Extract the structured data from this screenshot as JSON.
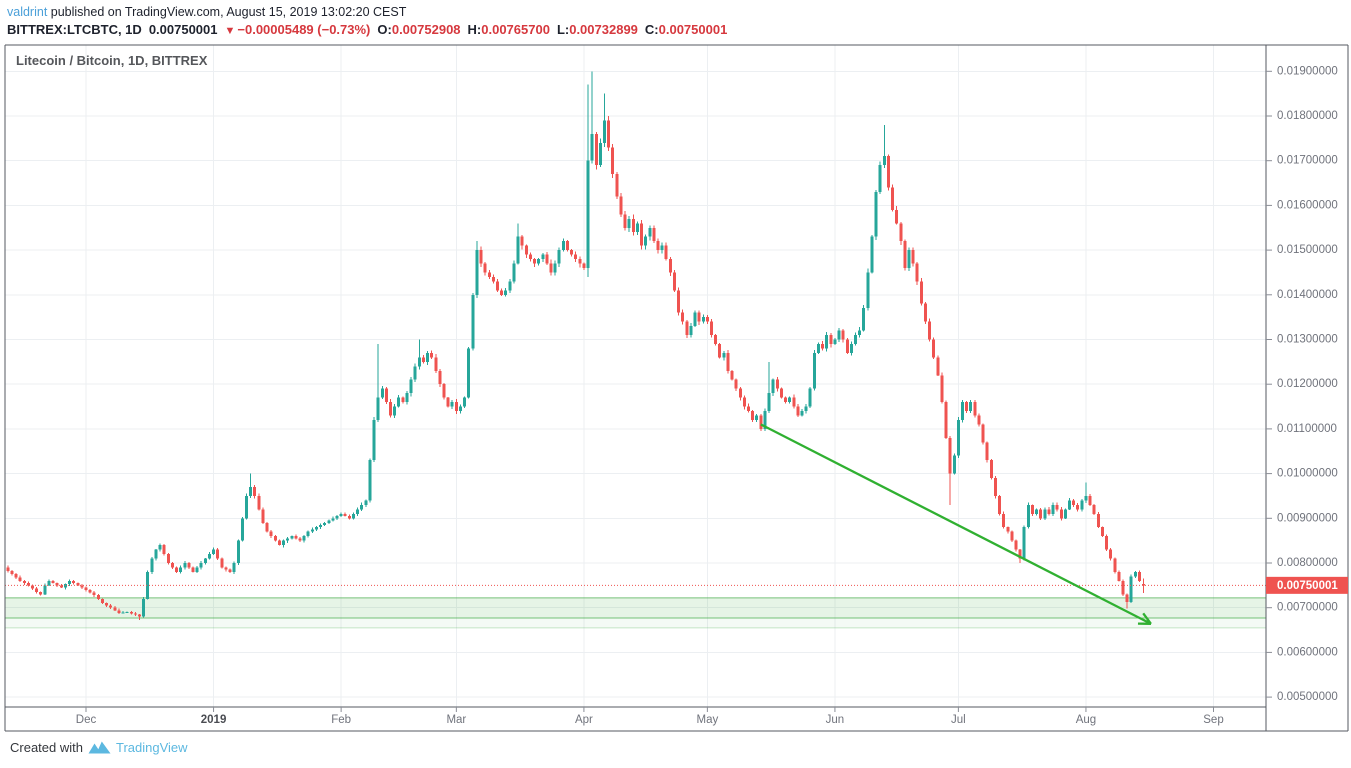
{
  "header": {
    "author": "valdrint",
    "published_text": " published on TradingView.com, August 15, 2019 13:02:20 CEST",
    "ohlc": {
      "symbol_interval": "BITTREX:LTCBTC, 1D",
      "last_price": "0.00750001",
      "direction_icon": "▼",
      "change": "−0.00005489 (−0.73%)",
      "o_label": "O:",
      "o": "0.00752908",
      "h_label": "H:",
      "h": "0.00765700",
      "l_label": "L:",
      "l": "0.00732899",
      "c_label": "C:",
      "c": "0.00750001"
    }
  },
  "footer": {
    "created_with": "Created with",
    "brand": "TradingView"
  },
  "colors": {
    "up": "#26a69a",
    "down": "#ef5350",
    "header_red": "#d6383e",
    "accent_blue": "#4ba0d9",
    "brand_blue": "#5cb8e0",
    "price_line": "#ef5350",
    "badge_bg": "#ef5350",
    "badge_text": "#ffffff",
    "zone_green": "#4caf50",
    "arrow_green": "#30b031",
    "grid": "#eceff2",
    "frame": "#555a62",
    "axis_text": "#70737c"
  },
  "chart_data": {
    "type": "candlestick",
    "title": "Litecoin / Bitcoin, 1D, BITTREX",
    "symbol": "BITTREX:LTCBTC",
    "exchange": "BITTREX",
    "pair": "Litecoin / Bitcoin",
    "interval": "1D",
    "start_date": "2018-11-11",
    "num_days": 278,
    "x_axis": {
      "labels": [
        {
          "text": "Dec",
          "day": 20,
          "year": false
        },
        {
          "text": "2019",
          "day": 51,
          "year": true
        },
        {
          "text": "Feb",
          "day": 82,
          "year": false
        },
        {
          "text": "Mar",
          "day": 110,
          "year": false
        },
        {
          "text": "Apr",
          "day": 141,
          "year": false
        },
        {
          "text": "May",
          "day": 171,
          "year": false
        },
        {
          "text": "Jun",
          "day": 202,
          "year": false
        },
        {
          "text": "Jul",
          "day": 232,
          "year": false
        },
        {
          "text": "Aug",
          "day": 263,
          "year": false
        },
        {
          "text": "Sep",
          "day": 294,
          "year": false
        }
      ]
    },
    "y_axis": {
      "ticks": [
        0.019,
        0.018,
        0.017,
        0.016,
        0.015,
        0.014,
        0.013,
        0.012,
        0.011,
        0.01,
        0.009,
        0.008,
        0.007,
        0.006,
        0.005
      ],
      "decimals": 8
    },
    "last_price_label": "0.00750001",
    "price_line_value": 0.00750001,
    "support_zone": {
      "top": 0.00722,
      "bottom": 0.00677,
      "outer_bottom": 0.00655
    },
    "trend_arrow": {
      "from_day": 184,
      "from_price": 0.0111,
      "to_day": 278.8,
      "to_price": 0.00664
    },
    "daily_closes": [
      [
        0,
        0.0079
      ],
      [
        2,
        0.00775
      ],
      [
        4,
        0.0076
      ],
      [
        6,
        0.0075
      ],
      [
        8,
        0.00735
      ],
      [
        9,
        0.0073
      ],
      [
        10,
        0.0075
      ],
      [
        11,
        0.0076
      ],
      [
        12,
        0.00755
      ],
      [
        13,
        0.0075
      ],
      [
        14,
        0.00745
      ],
      [
        16,
        0.0076
      ],
      [
        18,
        0.0075
      ],
      [
        19,
        0.00745
      ],
      [
        20,
        0.0074
      ],
      [
        22,
        0.00728
      ],
      [
        24,
        0.0071
      ],
      [
        26,
        0.007
      ],
      [
        28,
        0.00688
      ],
      [
        30,
        0.0069
      ],
      [
        32,
        0.00685
      ],
      [
        33,
        0.0068
      ],
      [
        34,
        0.0072
      ],
      [
        35,
        0.0078
      ],
      [
        36,
        0.0081
      ],
      [
        37,
        0.0083
      ],
      [
        38,
        0.0084
      ],
      [
        39,
        0.0082
      ],
      [
        40,
        0.008
      ],
      [
        41,
        0.0079
      ],
      [
        42,
        0.0078
      ],
      [
        43,
        0.0079
      ],
      [
        44,
        0.008
      ],
      [
        45,
        0.0079
      ],
      [
        46,
        0.0078
      ],
      [
        47,
        0.0079
      ],
      [
        48,
        0.008
      ],
      [
        49,
        0.0081
      ],
      [
        50,
        0.0082
      ],
      [
        51,
        0.0083
      ],
      [
        52,
        0.0081
      ],
      [
        53,
        0.0079
      ],
      [
        55,
        0.0078
      ],
      [
        56,
        0.008
      ],
      [
        57,
        0.0085
      ],
      [
        58,
        0.009
      ],
      [
        59,
        0.0095
      ],
      [
        60,
        0.0097
      ],
      [
        61,
        0.0095
      ],
      [
        62,
        0.0092
      ],
      [
        63,
        0.0089
      ],
      [
        64,
        0.0087
      ],
      [
        65,
        0.0086
      ],
      [
        66,
        0.0085
      ],
      [
        67,
        0.0084
      ],
      [
        68,
        0.0085
      ],
      [
        70,
        0.0086
      ],
      [
        72,
        0.0085
      ],
      [
        74,
        0.0087
      ],
      [
        76,
        0.0088
      ],
      [
        78,
        0.0089
      ],
      [
        80,
        0.009
      ],
      [
        82,
        0.0091
      ],
      [
        84,
        0.009
      ],
      [
        86,
        0.0092
      ],
      [
        88,
        0.0094
      ],
      [
        89,
        0.0103
      ],
      [
        90,
        0.0112
      ],
      [
        91,
        0.0117
      ],
      [
        92,
        0.0119
      ],
      [
        93,
        0.0116
      ],
      [
        94,
        0.0113
      ],
      [
        95,
        0.0115
      ],
      [
        96,
        0.0117
      ],
      [
        97,
        0.0116
      ],
      [
        98,
        0.0118
      ],
      [
        99,
        0.0121
      ],
      [
        100,
        0.0124
      ],
      [
        101,
        0.0126
      ],
      [
        102,
        0.0125
      ],
      [
        103,
        0.0127
      ],
      [
        104,
        0.0126
      ],
      [
        105,
        0.0123
      ],
      [
        106,
        0.012
      ],
      [
        107,
        0.0117
      ],
      [
        108,
        0.0115
      ],
      [
        109,
        0.0116
      ],
      [
        110,
        0.0114
      ],
      [
        111,
        0.0115
      ],
      [
        112,
        0.0117
      ],
      [
        113,
        0.0128
      ],
      [
        114,
        0.014
      ],
      [
        115,
        0.015
      ],
      [
        116,
        0.0147
      ],
      [
        117,
        0.0145
      ],
      [
        118,
        0.0144
      ],
      [
        119,
        0.0143
      ],
      [
        120,
        0.0141
      ],
      [
        121,
        0.014
      ],
      [
        122,
        0.0141
      ],
      [
        123,
        0.0143
      ],
      [
        124,
        0.0147
      ],
      [
        125,
        0.0153
      ],
      [
        126,
        0.0151
      ],
      [
        127,
        0.0149
      ],
      [
        128,
        0.0148
      ],
      [
        129,
        0.0147
      ],
      [
        130,
        0.0148
      ],
      [
        131,
        0.0149
      ],
      [
        132,
        0.0147
      ],
      [
        133,
        0.0145
      ],
      [
        134,
        0.0147
      ],
      [
        135,
        0.015
      ],
      [
        136,
        0.0152
      ],
      [
        137,
        0.015
      ],
      [
        138,
        0.0149
      ],
      [
        139,
        0.0148
      ],
      [
        140,
        0.0147
      ],
      [
        141,
        0.0146
      ],
      [
        142,
        0.017
      ],
      [
        143,
        0.0176
      ],
      [
        144,
        0.0169
      ],
      [
        145,
        0.0174
      ],
      [
        146,
        0.0179
      ],
      [
        147,
        0.0173
      ],
      [
        148,
        0.0167
      ],
      [
        149,
        0.0162
      ],
      [
        150,
        0.0158
      ],
      [
        151,
        0.0155
      ],
      [
        152,
        0.0157
      ],
      [
        153,
        0.0154
      ],
      [
        154,
        0.0156
      ],
      [
        155,
        0.0151
      ],
      [
        156,
        0.0153
      ],
      [
        157,
        0.0155
      ],
      [
        158,
        0.0152
      ],
      [
        159,
        0.015
      ],
      [
        160,
        0.0151
      ],
      [
        161,
        0.0148
      ],
      [
        162,
        0.0145
      ],
      [
        163,
        0.0141
      ],
      [
        164,
        0.0136
      ],
      [
        165,
        0.0134
      ],
      [
        166,
        0.0131
      ],
      [
        167,
        0.0133
      ],
      [
        168,
        0.0136
      ],
      [
        169,
        0.0134
      ],
      [
        170,
        0.0135
      ],
      [
        171,
        0.0134
      ],
      [
        172,
        0.0131
      ],
      [
        173,
        0.0129
      ],
      [
        174,
        0.0126
      ],
      [
        175,
        0.0127
      ],
      [
        176,
        0.0123
      ],
      [
        177,
        0.0121
      ],
      [
        178,
        0.0119
      ],
      [
        179,
        0.0117
      ],
      [
        180,
        0.0115
      ],
      [
        181,
        0.0114
      ],
      [
        182,
        0.0112
      ],
      [
        183,
        0.0113
      ],
      [
        184,
        0.011
      ],
      [
        185,
        0.0114
      ],
      [
        186,
        0.0118
      ],
      [
        187,
        0.0121
      ],
      [
        188,
        0.0119
      ],
      [
        189,
        0.0117
      ],
      [
        190,
        0.0116
      ],
      [
        191,
        0.0117
      ],
      [
        192,
        0.0115
      ],
      [
        193,
        0.0113
      ],
      [
        194,
        0.0114
      ],
      [
        195,
        0.0115
      ],
      [
        196,
        0.0119
      ],
      [
        197,
        0.0127
      ],
      [
        198,
        0.0129
      ],
      [
        199,
        0.0128
      ],
      [
        200,
        0.0131
      ],
      [
        201,
        0.0129
      ],
      [
        202,
        0.013
      ],
      [
        203,
        0.0132
      ],
      [
        204,
        0.013
      ],
      [
        205,
        0.0127
      ],
      [
        206,
        0.0129
      ],
      [
        207,
        0.0131
      ],
      [
        208,
        0.0132
      ],
      [
        209,
        0.0137
      ],
      [
        210,
        0.0145
      ],
      [
        211,
        0.0153
      ],
      [
        212,
        0.0163
      ],
      [
        213,
        0.0169
      ],
      [
        214,
        0.0171
      ],
      [
        215,
        0.0164
      ],
      [
        216,
        0.0159
      ],
      [
        217,
        0.0156
      ],
      [
        218,
        0.0152
      ],
      [
        219,
        0.0146
      ],
      [
        220,
        0.015
      ],
      [
        221,
        0.0147
      ],
      [
        222,
        0.0143
      ],
      [
        223,
        0.0138
      ],
      [
        224,
        0.0134
      ],
      [
        225,
        0.013
      ],
      [
        226,
        0.0126
      ],
      [
        227,
        0.0122
      ],
      [
        228,
        0.0116
      ],
      [
        229,
        0.0108
      ],
      [
        230,
        0.01
      ],
      [
        231,
        0.0104
      ],
      [
        232,
        0.0112
      ],
      [
        233,
        0.0116
      ],
      [
        234,
        0.0114
      ],
      [
        235,
        0.0116
      ],
      [
        236,
        0.0113
      ],
      [
        237,
        0.0111
      ],
      [
        238,
        0.0107
      ],
      [
        239,
        0.0103
      ],
      [
        240,
        0.0099
      ],
      [
        241,
        0.0095
      ],
      [
        242,
        0.0091
      ],
      [
        243,
        0.0088
      ],
      [
        244,
        0.0087
      ],
      [
        245,
        0.0085
      ],
      [
        246,
        0.0083
      ],
      [
        247,
        0.0081
      ],
      [
        248,
        0.0088
      ],
      [
        249,
        0.0093
      ],
      [
        250,
        0.0091
      ],
      [
        251,
        0.0092
      ],
      [
        252,
        0.009
      ],
      [
        253,
        0.0092
      ],
      [
        254,
        0.0091
      ],
      [
        255,
        0.0093
      ],
      [
        256,
        0.0092
      ],
      [
        257,
        0.009
      ],
      [
        258,
        0.0092
      ],
      [
        259,
        0.0094
      ],
      [
        260,
        0.0093
      ],
      [
        261,
        0.0092
      ],
      [
        262,
        0.0094
      ],
      [
        263,
        0.0095
      ],
      [
        264,
        0.0093
      ],
      [
        265,
        0.0091
      ],
      [
        266,
        0.0088
      ],
      [
        267,
        0.0086
      ],
      [
        268,
        0.0083
      ],
      [
        269,
        0.0081
      ],
      [
        270,
        0.0078
      ],
      [
        271,
        0.0076
      ],
      [
        272,
        0.0073
      ],
      [
        273,
        0.00713
      ],
      [
        274,
        0.0077
      ],
      [
        275,
        0.0078
      ],
      [
        276,
        0.0076
      ],
      [
        277,
        0.0075
      ]
    ],
    "wick_overrides": {
      "33": {
        "l": 0.00672
      },
      "60": {
        "h": 0.01
      },
      "91": {
        "h": 0.0129
      },
      "101": {
        "h": 0.013
      },
      "115": {
        "h": 0.0152
      },
      "125": {
        "h": 0.0156
      },
      "142": {
        "h": 0.0187,
        "l": 0.0144
      },
      "143": {
        "h": 0.019
      },
      "146": {
        "h": 0.0185
      },
      "184": {
        "l": 0.01095
      },
      "186": {
        "h": 0.0125
      },
      "214": {
        "h": 0.0178
      },
      "230": {
        "l": 0.0093
      },
      "247": {
        "l": 0.008
      },
      "263": {
        "h": 0.0098
      },
      "273": {
        "l": 0.00698
      },
      "277": {
        "o": 0.00752908,
        "h": 0.007657,
        "l": 0.00732899,
        "c": 0.00750001
      }
    }
  }
}
